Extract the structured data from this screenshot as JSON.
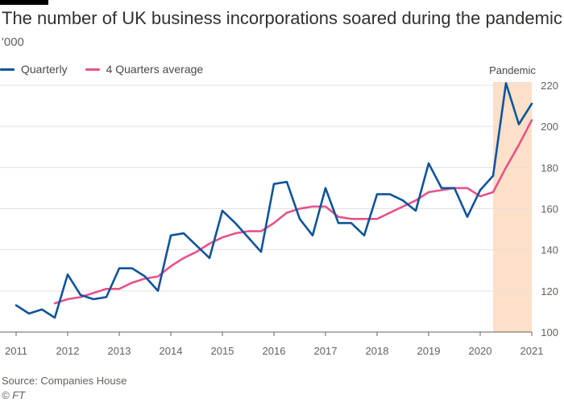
{
  "chart_data": {
    "type": "line",
    "title": "The number of UK business incorporations soared during the pandemic",
    "subtitle": "'000",
    "source": "Source: Companies House",
    "copyright": "© FT",
    "y_axis_position": "right",
    "ylim": [
      100,
      220
    ],
    "yticks": [
      100,
      120,
      140,
      160,
      180,
      200,
      220
    ],
    "xlim": [
      2011,
      2021
    ],
    "xticks": [
      2011,
      2012,
      2013,
      2014,
      2015,
      2016,
      2017,
      2018,
      2019,
      2020,
      2021
    ],
    "grid": "horizontal",
    "legend_position": "top-left",
    "shaded_region": {
      "label": "Pandemic",
      "x_start": 2020.25,
      "x_end": 2021.0,
      "color": "#fce0c8"
    },
    "series": [
      {
        "name": "Quarterly",
        "color": "#0f5499",
        "x": [
          2011.0,
          2011.25,
          2011.5,
          2011.75,
          2012.0,
          2012.25,
          2012.5,
          2012.75,
          2013.0,
          2013.25,
          2013.5,
          2013.75,
          2014.0,
          2014.25,
          2014.5,
          2014.75,
          2015.0,
          2015.25,
          2015.5,
          2015.75,
          2016.0,
          2016.25,
          2016.5,
          2016.75,
          2017.0,
          2017.25,
          2017.5,
          2017.75,
          2018.0,
          2018.25,
          2018.5,
          2018.75,
          2019.0,
          2019.25,
          2019.5,
          2019.75,
          2020.0,
          2020.25,
          2020.5,
          2020.75,
          2021.0
        ],
        "values": [
          113,
          109,
          111,
          107,
          128,
          118,
          116,
          117,
          131,
          131,
          127,
          120,
          147,
          148,
          142,
          136,
          159,
          153,
          146,
          139,
          172,
          173,
          155,
          147,
          170,
          153,
          153,
          147,
          167,
          167,
          164,
          159,
          182,
          170,
          170,
          156,
          169,
          176,
          221,
          201,
          211
        ]
      },
      {
        "name": "4 Quarters average",
        "color": "#e8528a",
        "x": [
          2011.75,
          2012.0,
          2012.25,
          2012.5,
          2012.75,
          2013.0,
          2013.25,
          2013.5,
          2013.75,
          2014.0,
          2014.25,
          2014.5,
          2014.75,
          2015.0,
          2015.25,
          2015.5,
          2015.75,
          2016.0,
          2016.25,
          2016.5,
          2016.75,
          2017.0,
          2017.25,
          2017.5,
          2017.75,
          2018.0,
          2018.25,
          2018.5,
          2018.75,
          2019.0,
          2019.25,
          2019.5,
          2019.75,
          2020.0,
          2020.25,
          2020.5,
          2020.75,
          2021.0
        ],
        "values": [
          114,
          116,
          117,
          119,
          121,
          121,
          124,
          126,
          127,
          132,
          136,
          139,
          143,
          146,
          148,
          149,
          149,
          153,
          158,
          160,
          161,
          161,
          156,
          155,
          155,
          155,
          158,
          161,
          164,
          168,
          169,
          170,
          170,
          166,
          168,
          180,
          191,
          203
        ]
      }
    ]
  }
}
